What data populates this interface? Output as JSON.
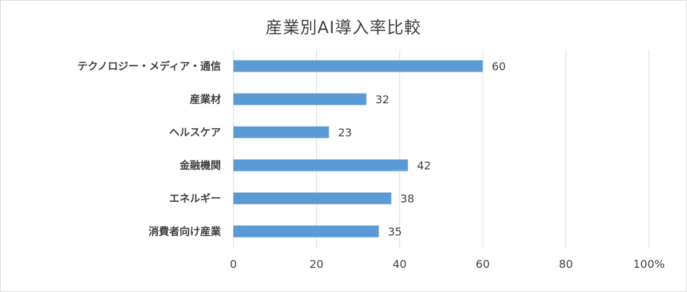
{
  "chart_data": {
    "type": "bar",
    "orientation": "horizontal",
    "title": "産業別AI導入率比較",
    "categories": [
      "テクノロジー・メディア・通信",
      "産業材",
      "ヘルスケア",
      "金融機関",
      "エネルギー",
      "消費者向け産業"
    ],
    "values": [
      60,
      32,
      23,
      42,
      38,
      35
    ],
    "data_labels": [
      "60",
      "32",
      "23",
      "42",
      "38",
      "35"
    ],
    "xlim": [
      0,
      100
    ],
    "x_ticks": [
      "0",
      "20",
      "40",
      "60",
      "80",
      "100%"
    ],
    "grid": "vertical",
    "legend": "none",
    "colors": {
      "bar": "#5b9bd5",
      "grid": "#d9d9d9",
      "text": "#404040"
    }
  }
}
